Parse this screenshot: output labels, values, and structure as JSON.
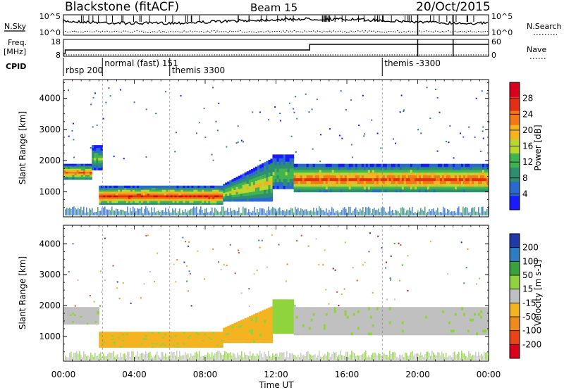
{
  "header": {
    "station": "Blackstone (fitACF)",
    "beam": "Beam 15",
    "date": "20/Oct/2015"
  },
  "top_panels": {
    "nsky_label": "N.Sky",
    "nsearch_label": "N.Search",
    "count_ticks_left": [
      "10^5",
      "10^0"
    ],
    "count_ticks_right": [
      "10^5",
      "10^0"
    ],
    "freq_label_line1": "Freq.",
    "freq_label_line2": "[MHz]",
    "freq_ticks": [
      "18",
      "8"
    ],
    "nave_label": "Nave",
    "nave_ticks": [
      "60",
      "0"
    ],
    "cpid_label": "CPID",
    "cpid_segments": [
      {
        "label": "rbsp 200",
        "hour": 0.0
      },
      {
        "label": "normal (fast) 151",
        "hour": 2.2
      },
      {
        "label": "themis 3300",
        "hour": 6.0
      },
      {
        "label": "themis -3300",
        "hour": 18.0
      }
    ]
  },
  "x_axis": {
    "label": "Time UT",
    "ticks": [
      "00:00",
      "04:00",
      "08:00",
      "12:00",
      "16:00",
      "20:00",
      "00:00"
    ],
    "range_hours": [
      0,
      24
    ]
  },
  "chart_data": [
    {
      "type": "heatmap",
      "name": "power",
      "ylabel": "Slant Range [km]",
      "yticks": [
        1000,
        2000,
        3000,
        4000
      ],
      "ylim": [
        200,
        4600
      ],
      "colorbar_label": "Power [dB]",
      "colorbar_ticks": [
        4,
        8,
        12,
        16,
        20,
        24,
        28
      ],
      "colorbar_range": [
        0,
        32
      ],
      "colors": [
        "#1a1aff",
        "#2a6ad0",
        "#2e8f70",
        "#41b350",
        "#b8d830",
        "#f4b320",
        "#f07818",
        "#e33015",
        "#d8001a"
      ],
      "bands": [
        {
          "t0": 0.0,
          "t1": 1.6,
          "r_lo": 1400,
          "r_hi": 1900,
          "peak": 24
        },
        {
          "t0": 1.6,
          "t1": 2.2,
          "r_lo": 1700,
          "r_hi": 2500,
          "peak": 14
        },
        {
          "t0": 2.0,
          "t1": 9.0,
          "r_lo": 600,
          "r_hi": 1200,
          "peak": 28
        },
        {
          "t0": 9.0,
          "t1": 11.8,
          "r_lo": 700,
          "r_hi": 2100,
          "peak": 18
        },
        {
          "t0": 11.8,
          "t1": 13.0,
          "r_lo": 1100,
          "r_hi": 2200,
          "peak": 14
        },
        {
          "t0": 13.0,
          "t1": 24.0,
          "r_lo": 1000,
          "r_hi": 1900,
          "peak": 26
        }
      ]
    },
    {
      "type": "heatmap",
      "name": "velocity",
      "ylabel": "Slant Range [km]",
      "yticks": [
        1000,
        2000,
        3000,
        4000
      ],
      "ylim": [
        200,
        4600
      ],
      "colorbar_label": "Velocity [m s-1]",
      "colorbar_ticks": [
        200,
        100,
        50,
        15,
        -15,
        -50,
        -100,
        -200
      ],
      "colors": [
        "#1f3aa8",
        "#2e7cc4",
        "#3aa23a",
        "#8fd43c",
        "#c0c0c0",
        "#f4b320",
        "#f08a1c",
        "#e84418",
        "#d8001a"
      ],
      "bands": [
        {
          "t0": 0.0,
          "t1": 2.0,
          "r_lo": 1400,
          "r_hi": 1950,
          "velocity": 0
        },
        {
          "t0": 2.0,
          "t1": 9.0,
          "r_lo": 650,
          "r_hi": 1150,
          "velocity": -40
        },
        {
          "t0": 9.0,
          "t1": 11.8,
          "r_lo": 800,
          "r_hi": 2000,
          "velocity": -40
        },
        {
          "t0": 11.8,
          "t1": 13.0,
          "r_lo": 1100,
          "r_hi": 2200,
          "velocity": 10
        },
        {
          "t0": 13.0,
          "t1": 24.0,
          "r_lo": 1050,
          "r_hi": 1950,
          "velocity": 0
        }
      ]
    }
  ]
}
